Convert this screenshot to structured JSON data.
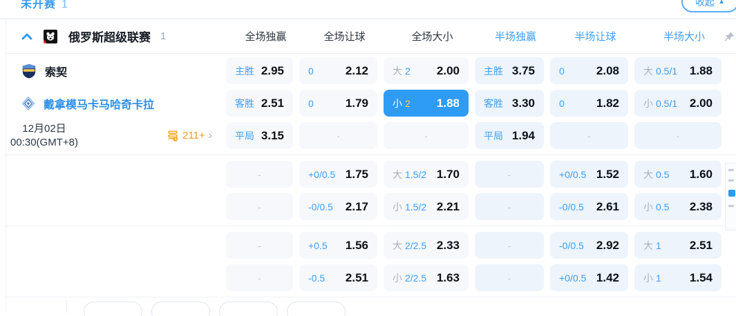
{
  "topbar": {
    "status_label": "未开赛",
    "status_count": "1",
    "collapse_label": "收起",
    "collapse_icon": "▲"
  },
  "league_header": {
    "name": "俄罗斯超级联赛",
    "match_count": "1",
    "columns": [
      "全场独赢",
      "全场让球",
      "全场大小",
      "半场独赢",
      "半场让球",
      "半场大小"
    ]
  },
  "match": {
    "home_team": "索契",
    "away_team": "戴拿模马卡马哈奇卡拉",
    "date": "12月02日",
    "time": "00:30(GMT+8)",
    "more_markets_count": "211+"
  },
  "icons": {
    "chevron_up": "^",
    "chevron_right": "›",
    "dash": "-",
    "pin": "pushpin",
    "market_count_icon": "coin-stack",
    "league_icon": "bear-badge"
  },
  "colors": {
    "accent": "#3d9ef5",
    "selected_bg": "#2e9bf5",
    "selected_line": "#ffd54a",
    "orange": "#f5a623",
    "value_text": "#0d1117"
  },
  "odds_groups": [
    {
      "rows": [
        [
          {
            "t": "odds",
            "label": "主胜",
            "value": "2.95"
          },
          {
            "t": "odds",
            "label": "0",
            "value": "2.12"
          },
          {
            "t": "ou",
            "side": "大",
            "line": "2",
            "value": "2.00"
          },
          {
            "t": "odds",
            "label": "主胜",
            "value": "3.75"
          },
          {
            "t": "odds",
            "label": "0",
            "value": "2.08"
          },
          {
            "t": "ou",
            "side": "大",
            "line": "0.5/1",
            "value": "1.88"
          }
        ],
        [
          {
            "t": "odds",
            "label": "客胜",
            "value": "2.51"
          },
          {
            "t": "odds",
            "label": "0",
            "value": "1.79"
          },
          {
            "t": "ou",
            "side": "小",
            "line": "2",
            "value": "1.88",
            "sel": true
          },
          {
            "t": "odds",
            "label": "客胜",
            "value": "3.30"
          },
          {
            "t": "odds",
            "label": "0",
            "value": "1.82"
          },
          {
            "t": "ou",
            "side": "小",
            "line": "0.5/1",
            "value": "2.00"
          }
        ],
        [
          {
            "t": "odds",
            "label": "平局",
            "value": "3.15"
          },
          {
            "t": "dash"
          },
          {
            "t": "dash"
          },
          {
            "t": "odds",
            "label": "平局",
            "value": "1.94"
          },
          {
            "t": "dash"
          },
          {
            "t": "dash"
          }
        ]
      ]
    },
    {
      "rows": [
        [
          {
            "t": "dash"
          },
          {
            "t": "odds",
            "label": "+0/0.5",
            "value": "1.75"
          },
          {
            "t": "ou",
            "side": "大",
            "line": "1.5/2",
            "value": "1.70"
          },
          {
            "t": "dash"
          },
          {
            "t": "odds",
            "label": "+0/0.5",
            "value": "1.52"
          },
          {
            "t": "ou",
            "side": "大",
            "line": "0.5",
            "value": "1.60"
          }
        ],
        [
          {
            "t": "dash"
          },
          {
            "t": "odds",
            "label": "-0/0.5",
            "value": "2.17"
          },
          {
            "t": "ou",
            "side": "小",
            "line": "1.5/2",
            "value": "2.21"
          },
          {
            "t": "dash"
          },
          {
            "t": "odds",
            "label": "-0/0.5",
            "value": "2.61"
          },
          {
            "t": "ou",
            "side": "小",
            "line": "0.5",
            "value": "2.38"
          }
        ]
      ]
    },
    {
      "rows": [
        [
          {
            "t": "dash"
          },
          {
            "t": "odds",
            "label": "+0.5",
            "value": "1.56"
          },
          {
            "t": "ou",
            "side": "大",
            "line": "2/2.5",
            "value": "2.33"
          },
          {
            "t": "dash"
          },
          {
            "t": "odds",
            "label": "-0/0.5",
            "value": "2.92"
          },
          {
            "t": "ou",
            "side": "大",
            "line": "1",
            "value": "2.51"
          }
        ],
        [
          {
            "t": "dash"
          },
          {
            "t": "odds",
            "label": "-0.5",
            "value": "2.51"
          },
          {
            "t": "ou",
            "side": "小",
            "line": "2/2.5",
            "value": "1.63"
          },
          {
            "t": "dash"
          },
          {
            "t": "odds",
            "label": "+0/0.5",
            "value": "1.42"
          },
          {
            "t": "ou",
            "side": "小",
            "line": "1",
            "value": "1.54"
          }
        ]
      ]
    }
  ]
}
